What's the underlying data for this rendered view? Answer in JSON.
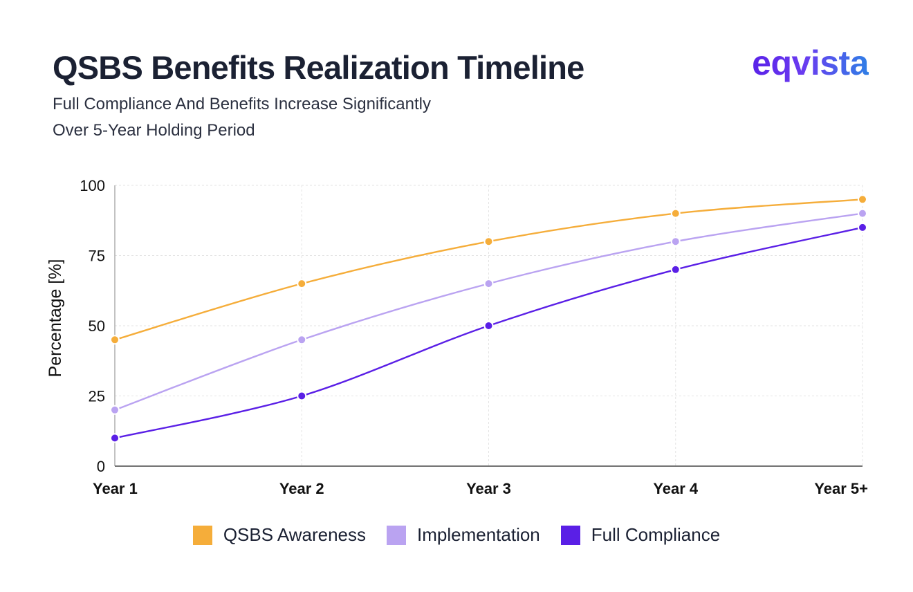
{
  "header": {
    "title": "QSBS Benefits Realization Timeline",
    "subtitle_line1": "Full Compliance And Benefits Increase Significantly",
    "subtitle_line2": "Over 5-Year Holding Period",
    "brand": "eqvista"
  },
  "chart_data": {
    "type": "line",
    "title": "QSBS Benefits Realization Timeline",
    "subtitle": "Full Compliance And Benefits Increase Significantly Over 5-Year Holding Period",
    "xlabel": "",
    "ylabel": "Percentage [%]",
    "categories": [
      "Year 1",
      "Year 2",
      "Year 3",
      "Year 4",
      "Year 5+"
    ],
    "ylim": [
      0,
      100
    ],
    "yticks": [
      0,
      25,
      50,
      75,
      100
    ],
    "grid": true,
    "legend_position": "bottom",
    "series": [
      {
        "name": "QSBS Awareness",
        "color": "#f5ad3a",
        "values": [
          45,
          65,
          80,
          90,
          95
        ]
      },
      {
        "name": "Implementation",
        "color": "#baa3f1",
        "values": [
          20,
          45,
          65,
          80,
          90
        ]
      },
      {
        "name": "Full Compliance",
        "color": "#5a1fe6",
        "values": [
          10,
          25,
          50,
          70,
          85
        ]
      }
    ]
  }
}
